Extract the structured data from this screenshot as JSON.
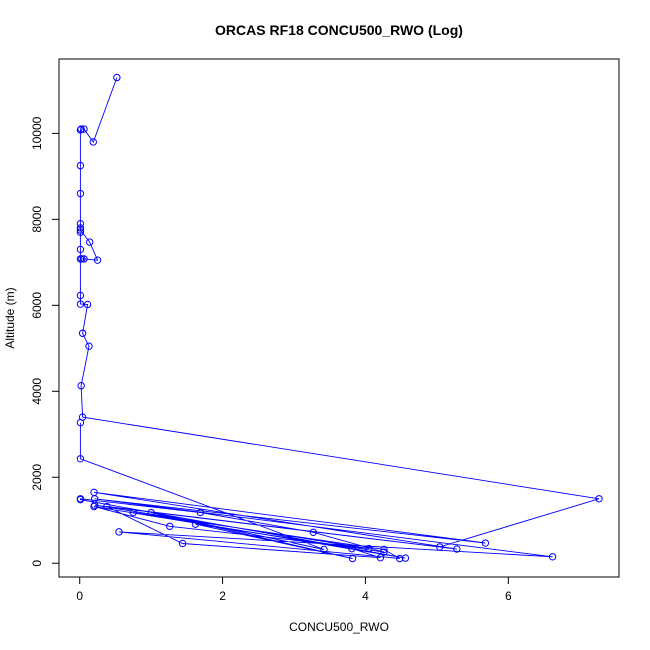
{
  "chart_data": {
    "type": "line",
    "title": "ORCAS RF18 CONCU500_RWO (Log)",
    "xlabel": "CONCU500_RWO",
    "ylabel": "Altitude (m)",
    "xlim": [
      -0.29,
      7.55
    ],
    "ylim": [
      -320,
      11730
    ],
    "x_ticks": [
      0,
      2,
      4,
      6
    ],
    "y_ticks": [
      0,
      2000,
      4000,
      6000,
      8000,
      10000
    ],
    "grid": false,
    "legend": "none",
    "series_color": "#0000ff",
    "series": [
      {
        "points": [
          [
            0.52,
            11300
          ],
          [
            0.19,
            9800
          ],
          [
            0.06,
            10100
          ],
          [
            0.02,
            10100
          ],
          [
            0.01,
            10080
          ],
          [
            0.01,
            9250
          ],
          [
            0.01,
            8600
          ],
          [
            0.01,
            7900
          ],
          [
            0.01,
            7800
          ],
          [
            0.01,
            7750
          ],
          [
            0.14,
            7470
          ],
          [
            0.25,
            7050
          ],
          [
            0.06,
            7080
          ],
          [
            0.03,
            7080
          ],
          [
            0.01,
            7080
          ],
          [
            0.01,
            7300
          ],
          [
            0.01,
            7700
          ],
          [
            0.01,
            6230
          ],
          [
            0.01,
            6030
          ],
          [
            0.11,
            6020
          ],
          [
            0.04,
            5350
          ],
          [
            0.13,
            5050
          ],
          [
            0.02,
            4130
          ],
          [
            0.04,
            3400
          ],
          [
            7.27,
            1500
          ],
          [
            5.04,
            380
          ],
          [
            0.38,
            1320
          ],
          [
            1.44,
            460
          ],
          [
            4.21,
            130
          ],
          [
            3.81,
            340
          ],
          [
            0.2,
            1320
          ],
          [
            1.26,
            860
          ],
          [
            4.05,
            340
          ],
          [
            0.21,
            1350
          ],
          [
            5.28,
            330
          ],
          [
            0.2,
            1650
          ],
          [
            5.68,
            470
          ],
          [
            0.21,
            1500
          ],
          [
            6.62,
            150
          ],
          [
            0.55,
            730
          ],
          [
            4.48,
            110
          ],
          [
            4.26,
            320
          ],
          [
            0.75,
            1180
          ],
          [
            4.56,
            120
          ],
          [
            0.01,
            1480
          ],
          [
            0.01,
            1500
          ],
          [
            1.69,
            1180
          ],
          [
            3.27,
            720
          ],
          [
            4.26,
            260
          ],
          [
            1.62,
            910
          ],
          [
            3.82,
            110
          ],
          [
            1.0,
            1180
          ],
          [
            3.42,
            320
          ],
          [
            0.01,
            2430
          ],
          [
            0.01,
            3270
          ]
        ]
      }
    ]
  }
}
